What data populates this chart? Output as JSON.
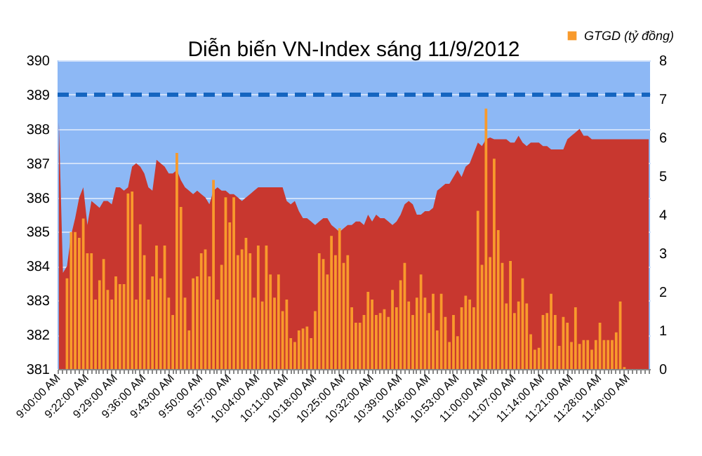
{
  "chart_data": {
    "type": "area",
    "title": "Diễn biến VN-Index sáng 11/9/2012",
    "categories": [
      "9:00:00 AM",
      null,
      null,
      null,
      null,
      null,
      null,
      "9:22:00 AM",
      null,
      null,
      null,
      null,
      null,
      null,
      "9:29:00 AM",
      null,
      null,
      null,
      null,
      null,
      null,
      "9:36:00 AM",
      null,
      null,
      null,
      null,
      null,
      null,
      "9:43:00 AM",
      null,
      null,
      null,
      null,
      null,
      null,
      "9:50:00 AM",
      null,
      null,
      null,
      null,
      null,
      null,
      "9:57:00 AM",
      null,
      null,
      null,
      null,
      null,
      null,
      "10:04:00 AM",
      null,
      null,
      null,
      null,
      null,
      null,
      "10:11:00 AM",
      null,
      null,
      null,
      null,
      null,
      null,
      "10:18:00 AM",
      null,
      null,
      null,
      null,
      null,
      null,
      "10:25:00 AM",
      null,
      null,
      null,
      null,
      null,
      null,
      "10:32:00 AM",
      null,
      null,
      null,
      null,
      null,
      null,
      "10:39:00 AM",
      null,
      null,
      null,
      null,
      null,
      null,
      "10:46:00 AM",
      null,
      null,
      null,
      null,
      null,
      null,
      "10:53:00 AM",
      null,
      null,
      null,
      null,
      null,
      null,
      "11:00:00 AM",
      null,
      null,
      null,
      null,
      null,
      null,
      "11:07:00 AM",
      null,
      null,
      null,
      null,
      null,
      null,
      "11:14:00 AM",
      null,
      null,
      null,
      null,
      null,
      null,
      "11:21:00 AM",
      null,
      null,
      null,
      null,
      null,
      null,
      "11:28:00 AM",
      null,
      null,
      null,
      null,
      null,
      null,
      "11:40:00 AM",
      null,
      null,
      null,
      null,
      null
    ],
    "series": [
      {
        "color": "#c8372f",
        "values": [
          388.2,
          383.8,
          384.0,
          384.9,
          385.4,
          386.0,
          386.3,
          385.2,
          385.9,
          385.8,
          385.7,
          385.9,
          385.9,
          385.8,
          386.3,
          386.3,
          386.2,
          386.3,
          386.9,
          387.0,
          386.9,
          386.7,
          386.3,
          386.2,
          387.1,
          387.0,
          386.9,
          386.7,
          386.7,
          386.8,
          386.5,
          386.3,
          386.2,
          386.1,
          386.2,
          386.1,
          386.0,
          385.8,
          386.2,
          386.3,
          386.2,
          386.2,
          386.1,
          386.1,
          386.0,
          385.9,
          386.0,
          386.1,
          386.2,
          386.3,
          386.3,
          386.3,
          386.3,
          386.3,
          386.3,
          386.3,
          385.9,
          385.8,
          385.9,
          385.6,
          385.4,
          385.4,
          385.3,
          385.2,
          385.3,
          385.4,
          385.4,
          385.2,
          385.1,
          385.0,
          385.1,
          385.2,
          385.2,
          385.3,
          385.3,
          385.2,
          385.5,
          385.3,
          385.5,
          385.4,
          385.4,
          385.3,
          385.2,
          385.3,
          385.5,
          385.8,
          385.9,
          385.8,
          385.5,
          385.5,
          385.6,
          385.6,
          385.7,
          386.2,
          386.3,
          386.4,
          386.4,
          386.6,
          386.8,
          386.6,
          386.9,
          387.0,
          387.3,
          387.6,
          387.5,
          387.7,
          387.75,
          387.7,
          387.7,
          387.7,
          387.7,
          387.6,
          387.6,
          387.8,
          387.6,
          387.5,
          387.6,
          387.6,
          387.6,
          387.5,
          387.5,
          387.4,
          387.4,
          387.4,
          387.4,
          387.7,
          387.8,
          387.9,
          388.0,
          387.8,
          387.8,
          387.7,
          387.7,
          387.7,
          387.7,
          387.7,
          387.7,
          387.7,
          387.7,
          387.7,
          387.7,
          387.7,
          387.7,
          387.7,
          387.7,
          387.7
        ]
      },
      {
        "type": "bar",
        "name": "GTGD (tỷ đồng)",
        "axis": "y2",
        "color": "#f89a2c",
        "values": [
          null,
          null,
          2.35,
          3.55,
          3.55,
          3.4,
          3.9,
          3.0,
          3.0,
          1.8,
          2.3,
          2.85,
          2.05,
          1.8,
          2.4,
          2.2,
          2.2,
          4.55,
          4.6,
          1.8,
          3.75,
          2.95,
          1.8,
          2.4,
          3.2,
          2.35,
          3.2,
          1.85,
          1.4,
          5.6,
          4.2,
          1.85,
          1.0,
          2.35,
          2.4,
          3.0,
          3.1,
          2.4,
          4.9,
          1.8,
          2.7,
          4.45,
          3.8,
          4.45,
          2.95,
          3.1,
          3.4,
          3.0,
          1.85,
          3.2,
          1.75,
          3.2,
          2.45,
          1.85,
          2.45,
          1.5,
          1.8,
          0.8,
          0.7,
          1.0,
          1.05,
          1.1,
          0.8,
          1.5,
          3.0,
          2.85,
          2.45,
          3.45,
          2.95,
          3.65,
          2.75,
          2.95,
          1.6,
          1.2,
          1.2,
          1.4,
          2.0,
          1.8,
          1.4,
          1.45,
          1.55,
          1.35,
          2.05,
          1.6,
          2.3,
          2.75,
          1.75,
          1.4,
          1.85,
          2.45,
          1.85,
          1.45,
          1.95,
          1.0,
          1.95,
          1.35,
          0.7,
          1.4,
          0.85,
          1.6,
          1.9,
          1.8,
          1.6,
          4.1,
          2.7,
          6.75,
          2.9,
          5.45,
          3.6,
          2.75,
          1.7,
          2.8,
          1.45,
          1.75,
          2.35,
          1.7,
          0.9,
          0.5,
          0.55,
          1.4,
          1.45,
          1.95,
          1.4,
          0.6,
          1.35,
          1.2,
          0.7,
          1.6,
          0.65,
          0.75,
          0.75,
          0.5,
          0.75,
          1.2,
          0.75,
          0.75,
          0.75,
          0.95,
          1.75,
          0.05,
          null,
          null,
          null,
          null,
          null,
          null
        ]
      }
    ],
    "ylim": [
      381,
      390
    ],
    "yticks": [
      381,
      382,
      383,
      384,
      385,
      386,
      387,
      388,
      389,
      390
    ],
    "y2lim": [
      0,
      8
    ],
    "y2ticks": [
      0,
      1,
      2,
      3,
      4,
      5,
      6,
      7,
      8
    ],
    "ref_lines": [
      {
        "axis": "y",
        "value": 389,
        "color": "#1565c0",
        "line_style": "dashed"
      }
    ],
    "grid": "y",
    "legend": "top right"
  }
}
